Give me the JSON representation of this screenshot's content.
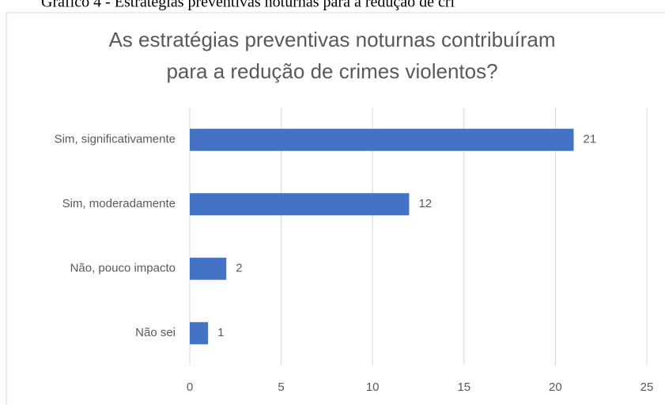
{
  "caption": "Gráfico 4 - Estratégias preventivas noturnas para a redução de cri",
  "chart_data": {
    "type": "bar",
    "orientation": "horizontal",
    "title": [
      "As estratégias preventivas noturnas contribuíram",
      "para a redução de crimes violentos?"
    ],
    "categories": [
      "Sim, significativamente",
      "Sim, moderadamente",
      "Não, pouco impacto",
      "Não sei"
    ],
    "values": [
      21,
      12,
      2,
      1
    ],
    "color": "#4472c4",
    "xlim": [
      0,
      25
    ],
    "xticks": [
      0,
      5,
      10,
      15,
      20,
      25
    ],
    "grid": true
  }
}
